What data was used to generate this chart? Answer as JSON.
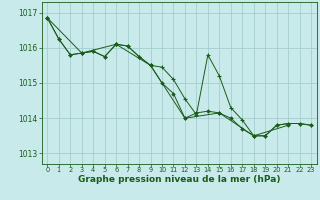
{
  "background_color": "#c8eaea",
  "grid_color": "#9fc8c8",
  "line_color": "#1a5c1a",
  "xlabel": "Graphe pression niveau de la mer (hPa)",
  "xlabel_fontsize": 6.5,
  "xtick_fontsize": 4.8,
  "ytick_fontsize": 5.5,
  "xlim": [
    -0.5,
    23.5
  ],
  "ylim": [
    1012.7,
    1017.3
  ],
  "yticks": [
    1013,
    1014,
    1015,
    1016,
    1017
  ],
  "xticks": [
    0,
    1,
    2,
    3,
    4,
    5,
    6,
    7,
    8,
    9,
    10,
    11,
    12,
    13,
    14,
    15,
    16,
    17,
    18,
    19,
    20,
    21,
    22,
    23
  ],
  "series1_x": [
    0,
    1,
    2,
    3,
    4,
    5,
    6,
    7,
    8,
    9,
    10,
    11,
    12,
    13,
    14,
    15,
    16,
    17,
    18,
    19,
    20,
    21,
    22,
    23
  ],
  "series1_y": [
    1016.85,
    1016.25,
    1015.8,
    1015.85,
    1015.9,
    1015.75,
    1016.1,
    1016.05,
    1015.75,
    1015.5,
    1015.45,
    1015.1,
    1014.55,
    1014.1,
    1015.8,
    1015.2,
    1014.3,
    1013.95,
    1013.5,
    1013.5,
    1013.8,
    1013.85,
    1013.85,
    1013.8
  ],
  "series2_x": [
    0,
    1,
    2,
    3,
    4,
    5,
    6,
    7,
    8,
    9,
    10,
    11,
    12,
    13,
    14,
    15,
    16,
    17,
    18,
    19,
    20,
    21,
    22,
    23
  ],
  "series2_y": [
    1016.85,
    1016.25,
    1015.8,
    1015.85,
    1015.9,
    1015.75,
    1016.1,
    1016.05,
    1015.75,
    1015.5,
    1015.0,
    1014.7,
    1014.0,
    1014.15,
    1014.2,
    1014.15,
    1014.0,
    1013.7,
    1013.5,
    1013.5,
    1013.8,
    1013.85,
    1013.85,
    1013.8
  ],
  "series3_x": [
    0,
    3,
    6,
    9,
    12,
    15,
    18,
    21
  ],
  "series3_y": [
    1016.85,
    1015.85,
    1016.1,
    1015.5,
    1014.0,
    1014.15,
    1013.5,
    1013.8
  ]
}
